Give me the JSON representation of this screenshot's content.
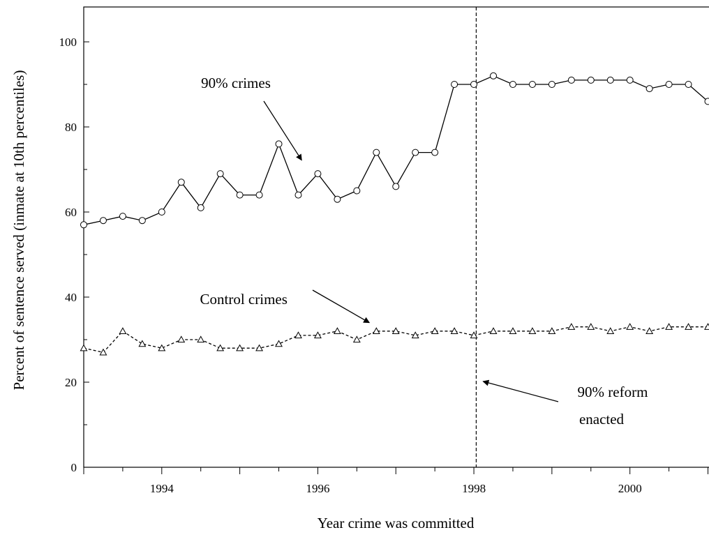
{
  "chart_data": {
    "type": "line",
    "title": "",
    "xlabel": "Year crime was committed",
    "ylabel": "Percent of sentence served (inmate at 10th percentiles)",
    "xlim": [
      1993,
      2001
    ],
    "ylim": [
      0,
      100
    ],
    "x_ticks": [
      1994,
      1996,
      1998,
      2000
    ],
    "x_tick_labels": [
      "1994",
      "1996",
      "1998",
      "2000"
    ],
    "y_ticks": [
      0,
      20,
      40,
      60,
      80,
      100
    ],
    "y_tick_labels": [
      "0",
      "20",
      "40",
      "60",
      "80",
      "100"
    ],
    "grid": false,
    "reference_line": {
      "x": 1998.03,
      "style": "dashed"
    },
    "x": [
      1993.0,
      1993.25,
      1993.5,
      1993.75,
      1994.0,
      1994.25,
      1994.5,
      1994.75,
      1995.0,
      1995.25,
      1995.5,
      1995.75,
      1996.0,
      1996.25,
      1996.5,
      1996.75,
      1997.0,
      1997.25,
      1997.5,
      1997.75,
      1998.0,
      1998.25,
      1998.5,
      1998.75,
      1999.0,
      1999.25,
      1999.5,
      1999.75,
      2000.0,
      2000.25,
      2000.5,
      2000.75,
      2001.0
    ],
    "series": [
      {
        "name": "90% crimes",
        "style": "solid",
        "marker": "circle",
        "values": [
          57,
          58,
          59,
          58,
          60,
          67,
          61,
          69,
          64,
          64,
          76,
          64,
          69,
          63,
          65,
          74,
          66,
          74,
          74,
          90,
          90,
          92,
          90,
          90,
          90,
          91,
          91,
          91,
          91,
          89,
          90,
          90,
          86
        ]
      },
      {
        "name": "Control crimes",
        "style": "dashed",
        "marker": "triangle",
        "values": [
          28,
          27,
          32,
          29,
          28,
          30,
          30,
          28,
          28,
          28,
          29,
          31,
          31,
          32,
          30,
          32,
          32,
          31,
          32,
          32,
          31,
          32,
          32,
          32,
          32,
          33,
          33,
          32,
          33,
          32,
          33,
          33,
          33
        ]
      }
    ],
    "annotations": [
      {
        "text": "90% crimes",
        "target_x": 1995.9,
        "target_y": 73,
        "label_x": 1994.95,
        "label_y": 90.5
      },
      {
        "text": "Control crimes",
        "target_x": 1996.75,
        "target_y": 33,
        "label_x": 1995.05,
        "label_y": 39.7
      },
      {
        "lines": [
          "90% reform",
          "enacted"
        ],
        "target_x": 1998.1,
        "target_y": 21,
        "label_x": 1999.1,
        "label_y": 14
      }
    ]
  }
}
